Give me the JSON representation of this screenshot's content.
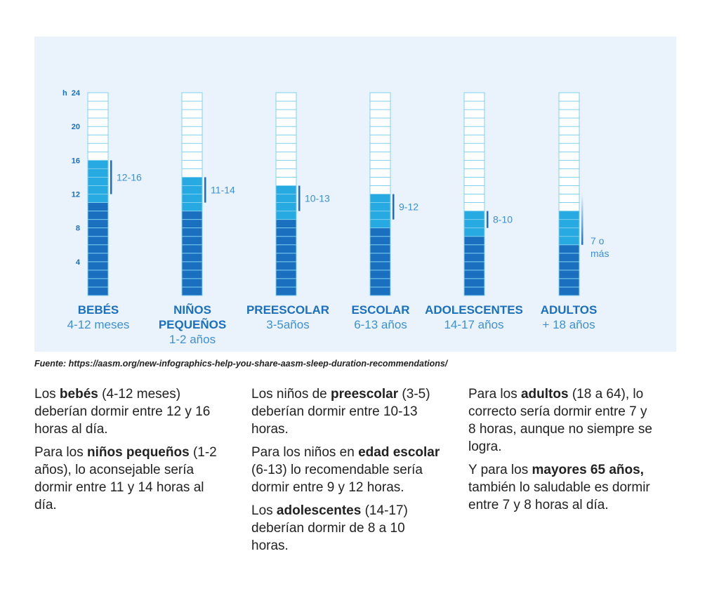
{
  "chart_data": {
    "type": "bar",
    "title": "",
    "ylabel": "h",
    "ylim": [
      0,
      24
    ],
    "yticks": [
      4,
      8,
      12,
      16,
      20,
      24
    ],
    "categories": [
      {
        "name": "BEBÉS",
        "sub": "4-12 meses"
      },
      {
        "name": "NIÑOS PEQUEÑOS",
        "sub": "1-2 años"
      },
      {
        "name": "PREESCOLAR",
        "sub": "3-5años"
      },
      {
        "name": "ESCOLAR",
        "sub": "6-13 años"
      },
      {
        "name": "ADOLESCENTES",
        "sub": "14-17 años"
      },
      {
        "name": "ADULTOS",
        "sub": "+ 18 años"
      }
    ],
    "series": [
      {
        "name": "min",
        "values": [
          11,
          10,
          9,
          8,
          7,
          6
        ]
      },
      {
        "name": "recommended_range",
        "low": [
          12,
          11,
          10,
          9,
          8,
          7
        ],
        "high": [
          16,
          14,
          13,
          12,
          10,
          10
        ],
        "labels": [
          "12-16",
          "11-14",
          "10-13",
          "9-12",
          "8-10",
          "7 o más"
        ]
      }
    ],
    "colors": {
      "dark": "#1a6fbf",
      "light": "#27a9e1",
      "empty": "#ffffff",
      "grid": "#7fd0f0",
      "label": "#3d8fd6"
    }
  },
  "source": "Fuente: https://aasm.org/new-infographics-help-you-share-aasm-sleep-duration-recommendations/",
  "columns": [
    [
      [
        "Los ",
        "bebés",
        " (4-12 meses) deberían dormir entre 12 y 16 horas al día."
      ],
      [
        "Para los ",
        "niños pequeños",
        " (1-2 años), lo aconsejable sería dormir entre 11 y 14 horas al día."
      ]
    ],
    [
      [
        "Los niños de ",
        "preescolar",
        " (3-5) deberían dormir entre 10-13 horas."
      ],
      [
        "Para los niños en ",
        "edad escolar",
        " (6-13) lo recomendable sería dormir entre 9 y 12 horas."
      ],
      [
        "Los ",
        "adolescentes",
        " (14-17) deberían dormir de 8 a 10 horas."
      ]
    ],
    [
      [
        "Para los ",
        "adultos",
        " (18 a 64), lo correcto sería dormir entre 7 y 8 horas, aunque no siempre se logra."
      ],
      [
        "Y para los ",
        "mayores 65 años,",
        " también lo saludable es dormir entre 7 y 8 horas al día."
      ]
    ]
  ]
}
